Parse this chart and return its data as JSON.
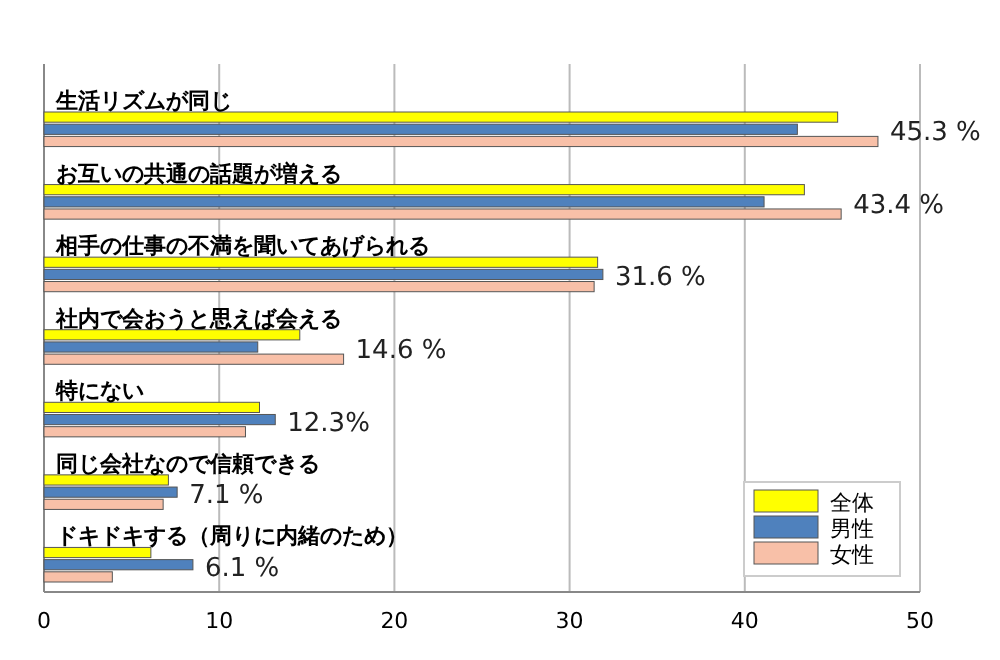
{
  "chart_data": {
    "type": "bar",
    "orientation": "horizontal",
    "categories": [
      "生活リズムが同じ",
      "お互いの共通の話題が増える",
      "相手の仕事の不満を聞いてあげられる",
      "社内で会おうと思えば会える",
      "特にない",
      "同じ会社なので信頼できる",
      "ドキドキする（周りに内緒のため）"
    ],
    "series": [
      {
        "name": "全体",
        "color": "#ffff00",
        "values": [
          45.3,
          43.4,
          31.6,
          14.6,
          12.3,
          7.1,
          6.1
        ],
        "value_labels": [
          "45.3 %",
          "43.4 %",
          "31.6 %",
          "14.6 %",
          "12.3%",
          "7.1 %",
          "6.1 %"
        ]
      },
      {
        "name": "男性",
        "color": "#4f81bd",
        "values": [
          43.0,
          41.1,
          31.9,
          12.2,
          13.2,
          7.6,
          8.5
        ]
      },
      {
        "name": "女性",
        "color": "#f8c0a8",
        "values": [
          47.6,
          45.5,
          31.4,
          17.1,
          11.5,
          6.8,
          3.9
        ]
      }
    ],
    "xlim": [
      0,
      50
    ],
    "xticks": [
      0,
      10,
      20,
      30,
      40,
      50
    ],
    "grid": "x",
    "legend": "bottom right"
  }
}
